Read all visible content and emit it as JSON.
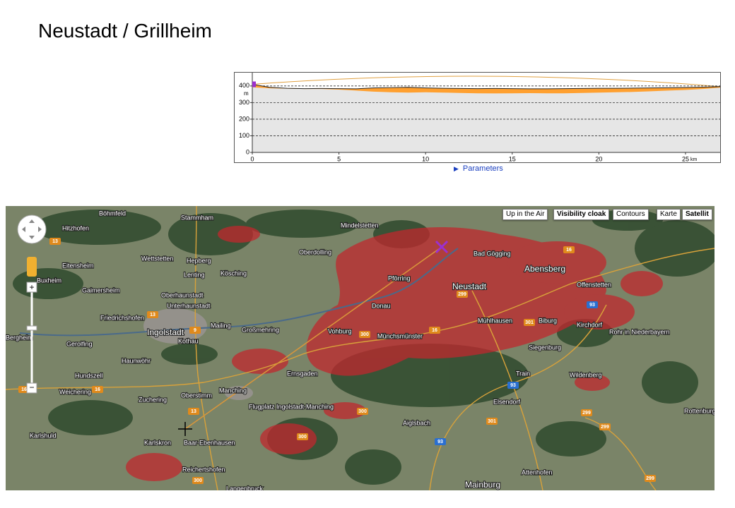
{
  "header": {
    "title": "Neustadt / Grillheim"
  },
  "profile": {
    "xlim": [
      0,
      27
    ],
    "ylim": [
      0,
      480
    ],
    "xticks": [
      0,
      5,
      10,
      15,
      20,
      25
    ],
    "yticks": [
      0,
      100,
      200,
      300,
      400
    ],
    "x_unit": "km",
    "y_unit": "m",
    "x": [
      0,
      1,
      2,
      3,
      4,
      5,
      6,
      7,
      8,
      9,
      10,
      11,
      12,
      13,
      14,
      15,
      16,
      17,
      18,
      19,
      20,
      21,
      22,
      23,
      24,
      25,
      26,
      27
    ],
    "terrain": [
      410,
      392,
      386,
      384,
      385,
      384,
      383,
      388,
      390,
      392,
      388,
      386,
      385,
      384,
      385,
      384,
      383,
      383,
      384,
      385,
      386,
      386,
      387,
      388,
      389,
      391,
      393,
      396
    ],
    "visible_floor": [
      392,
      386,
      384,
      382,
      382,
      378,
      372,
      366,
      362,
      360,
      362,
      360,
      358,
      356,
      355,
      356,
      357,
      356,
      356,
      358,
      360,
      362,
      364,
      368,
      372,
      376,
      382,
      390
    ],
    "terrain_color": "#222222",
    "visible_color": "#ffa030",
    "grid": true,
    "link": "Parameters"
  },
  "map": {
    "buttons": [
      "Up in the Air",
      "Visibility cloak",
      "Contours"
    ],
    "map_types": [
      "Karte",
      "Satellit"
    ],
    "zoom_in": "+",
    "zoom_out": "−",
    "places": [
      "Böhmfeld",
      "Stammham",
      "Hitzhofen",
      "Mindelstetten",
      "Oberdolling",
      "Bad Gögging",
      "Eitensheim",
      "Wettstetten",
      "Hepberg",
      "Lenting",
      "Kösching",
      "Pförring",
      "Neustadt",
      "Abensberg",
      "Buxheim",
      "Gaimersheim",
      "Oberhaunstadt",
      "Unterhaunstadt",
      "Offenstetten",
      "Friedrichshofen",
      "Ingolstadt",
      "Mailing",
      "Großmehring",
      "Donau",
      "Biburg",
      "Mühlhausen",
      "Kirchdorf",
      "Vohburg",
      "Münchsmünster",
      "Rohr in Niederbayern",
      "Bergheim",
      "Gerolfing",
      "Kothau",
      "Siegenburg",
      "Haunwöhr",
      "Hundszell",
      "Ernsgaden",
      "Train",
      "Wildenberg",
      "Weichering",
      "Manching",
      "Oberstimm",
      "Zuchering",
      "Flugplatz Ingolstadt-Manching",
      "Elsendorf",
      "Rottenburg",
      "Karlshuld",
      "Karlskron",
      "Baar-Ebenhausen",
      "Aiglsbach",
      "Reichertshofen",
      "Attenhofen",
      "Langenbruck",
      "Mainburg"
    ],
    "shields": [
      "13",
      "16",
      "9",
      "13",
      "16",
      "300",
      "299",
      "16",
      "301",
      "93",
      "93",
      "300",
      "301",
      "93",
      "299",
      "299",
      "16",
      "13",
      "300",
      "299",
      "300"
    ]
  }
}
